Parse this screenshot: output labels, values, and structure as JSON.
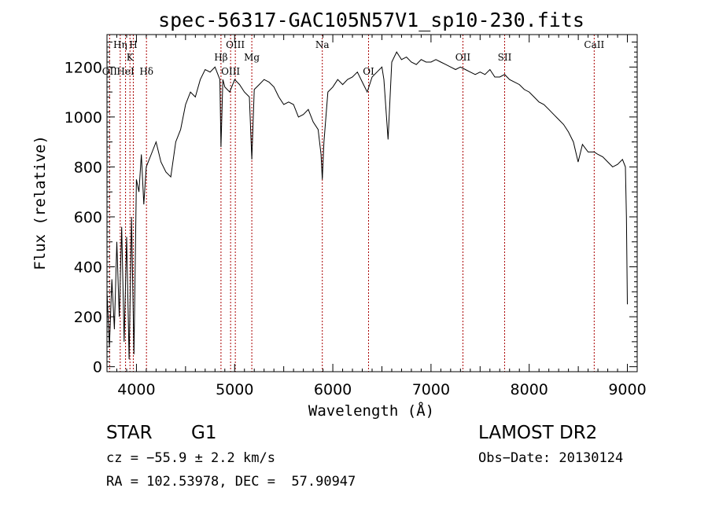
{
  "chart_data": {
    "type": "line",
    "title": "spec-56317-GAC105N57V1_sp10-230.fits",
    "xlabel": "Wavelength (Å)",
    "ylabel": "Flux (relative)",
    "xlim": [
      3700,
      9100
    ],
    "ylim": [
      -20,
      1330
    ],
    "x_ticks": [
      4000,
      5000,
      6000,
      7000,
      8000,
      9000
    ],
    "y_ticks": [
      0,
      200,
      400,
      600,
      800,
      1000,
      1200
    ],
    "line_color": "#000000",
    "marker_color": "#aa0000",
    "spectral_lines": [
      {
        "label": "Hη",
        "x": 3835,
        "row": 0
      },
      {
        "label": "H",
        "x": 3968,
        "row": 0
      },
      {
        "label": "K",
        "x": 3934,
        "row": 1
      },
      {
        "label": "OII",
        "x": 3727,
        "row": 2
      },
      {
        "label": "HeI",
        "x": 3889,
        "row": 2
      },
      {
        "label": "Hδ",
        "x": 4102,
        "row": 2
      },
      {
        "label": "OIII",
        "x": 5007,
        "row": 0
      },
      {
        "label": "Hβ",
        "x": 4861,
        "row": 1
      },
      {
        "label": "OIII",
        "x": 4959,
        "row": 2
      },
      {
        "label": "Mg",
        "x": 5175,
        "row": 1
      },
      {
        "label": "Na",
        "x": 5893,
        "row": 0
      },
      {
        "label": "OI",
        "x": 6364,
        "row": 2
      },
      {
        "label": "OII",
        "x": 7325,
        "row": 1
      },
      {
        "label": "SII",
        "x": 7750,
        "row": 1
      },
      {
        "label": "CaII",
        "x": 8662,
        "row": 0
      }
    ],
    "series": [
      {
        "x": [
          3700,
          3725,
          3750,
          3775,
          3800,
          3825,
          3850,
          3875,
          3900,
          3925,
          3950,
          3975,
          4000,
          4025,
          4050,
          4075,
          4100,
          4150,
          4200,
          4250,
          4300,
          4350,
          4400,
          4450,
          4500,
          4550,
          4600,
          4650,
          4700,
          4750,
          4800,
          4850,
          4861,
          4880,
          4900,
          4950,
          5000,
          5050,
          5100,
          5150,
          5175,
          5200,
          5250,
          5300,
          5350,
          5400,
          5450,
          5500,
          5550,
          5600,
          5650,
          5700,
          5750,
          5800,
          5850,
          5880,
          5893,
          5910,
          5950,
          6000,
          6050,
          6100,
          6150,
          6200,
          6250,
          6300,
          6350,
          6400,
          6450,
          6500,
          6520,
          6563,
          6600,
          6650,
          6700,
          6750,
          6800,
          6850,
          6900,
          6950,
          7000,
          7050,
          7100,
          7150,
          7200,
          7250,
          7300,
          7350,
          7400,
          7450,
          7500,
          7550,
          7600,
          7650,
          7700,
          7750,
          7800,
          7850,
          7900,
          7950,
          8000,
          8050,
          8100,
          8150,
          8200,
          8250,
          8300,
          8350,
          8400,
          8450,
          8498,
          8542,
          8600,
          8662,
          8700,
          8750,
          8800,
          8850,
          8900,
          8950,
          8980,
          8990,
          9000
        ],
        "y": [
          300,
          80,
          350,
          150,
          500,
          200,
          560,
          100,
          520,
          30,
          600,
          50,
          750,
          700,
          850,
          650,
          800,
          850,
          900,
          820,
          780,
          760,
          900,
          950,
          1050,
          1100,
          1080,
          1150,
          1190,
          1180,
          1200,
          1150,
          880,
          1150,
          1120,
          1100,
          1150,
          1130,
          1100,
          1080,
          830,
          1110,
          1130,
          1150,
          1140,
          1120,
          1080,
          1050,
          1060,
          1050,
          1000,
          1010,
          1030,
          980,
          950,
          850,
          750,
          900,
          1100,
          1120,
          1150,
          1130,
          1150,
          1160,
          1180,
          1140,
          1100,
          1160,
          1180,
          1200,
          1150,
          910,
          1220,
          1260,
          1230,
          1240,
          1220,
          1210,
          1230,
          1220,
          1220,
          1230,
          1220,
          1210,
          1200,
          1190,
          1200,
          1190,
          1180,
          1170,
          1180,
          1170,
          1190,
          1160,
          1160,
          1170,
          1150,
          1140,
          1130,
          1110,
          1100,
          1080,
          1060,
          1050,
          1030,
          1010,
          990,
          970,
          940,
          900,
          820,
          890,
          860,
          860,
          850,
          840,
          820,
          800,
          810,
          830,
          800,
          600,
          250
        ]
      }
    ]
  },
  "info": {
    "object_class": "STAR",
    "subclass": "G1",
    "survey": "LAMOST DR2",
    "redshift": "cz = −55.9 ± 2.2 km/s",
    "obs_date": "Obs−Date: 20130124",
    "coords": "RA = 102.53978, DEC =  57.90947"
  }
}
